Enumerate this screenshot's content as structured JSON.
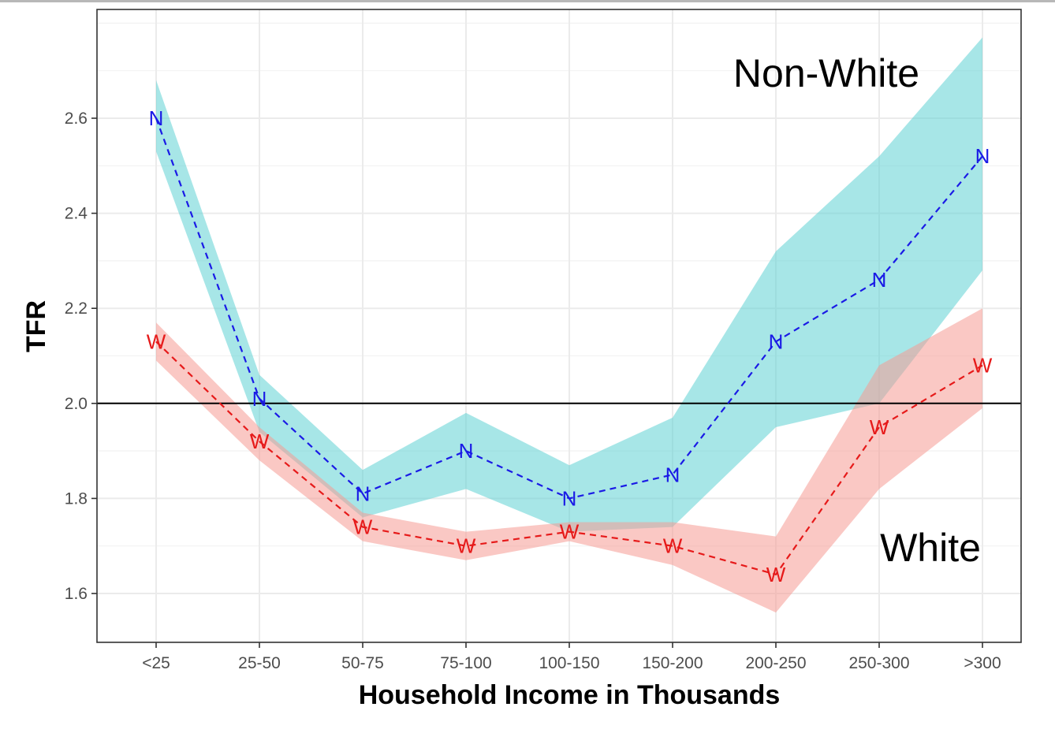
{
  "chart_data": {
    "type": "line",
    "title": "",
    "xlabel": "Household Income in Thousands",
    "ylabel": "TFR",
    "categories": [
      "<25",
      "25-50",
      "50-75",
      "75-100",
      "100-150",
      "150-200",
      "200-250",
      "250-300",
      ">300"
    ],
    "ylim": [
      1.5,
      2.82
    ],
    "yticks": [
      1.6,
      1.8,
      2.0,
      2.2,
      2.4,
      2.6
    ],
    "ytick_labels": [
      "1.6",
      "1.8",
      "2.0",
      "2.2",
      "2.4",
      "2.6"
    ],
    "grid": true,
    "reference_line": 2.0,
    "series": [
      {
        "name": "Non-White",
        "marker": "N",
        "color": "#1a1ae6",
        "band_color": "#5fd2d4",
        "values": [
          2.6,
          2.01,
          1.81,
          1.9,
          1.8,
          1.85,
          2.13,
          2.26,
          2.52
        ],
        "upper": [
          2.68,
          2.06,
          1.86,
          1.98,
          1.87,
          1.97,
          2.32,
          2.52,
          2.77
        ],
        "lower": [
          2.53,
          1.94,
          1.76,
          1.82,
          1.73,
          1.74,
          1.95,
          2.0,
          2.28
        ]
      },
      {
        "name": "White",
        "marker": "W",
        "color": "#e61a1a",
        "band_color": "#f59a94",
        "values": [
          2.13,
          1.92,
          1.74,
          1.7,
          1.73,
          1.7,
          1.64,
          1.95,
          2.08
        ],
        "upper": [
          2.17,
          1.95,
          1.77,
          1.73,
          1.75,
          1.75,
          1.72,
          2.08,
          2.2
        ],
        "lower": [
          2.09,
          1.88,
          1.71,
          1.67,
          1.71,
          1.66,
          1.56,
          1.82,
          1.99
        ]
      }
    ]
  },
  "labels": {
    "nonwhite": "Non-White",
    "white": "White"
  }
}
